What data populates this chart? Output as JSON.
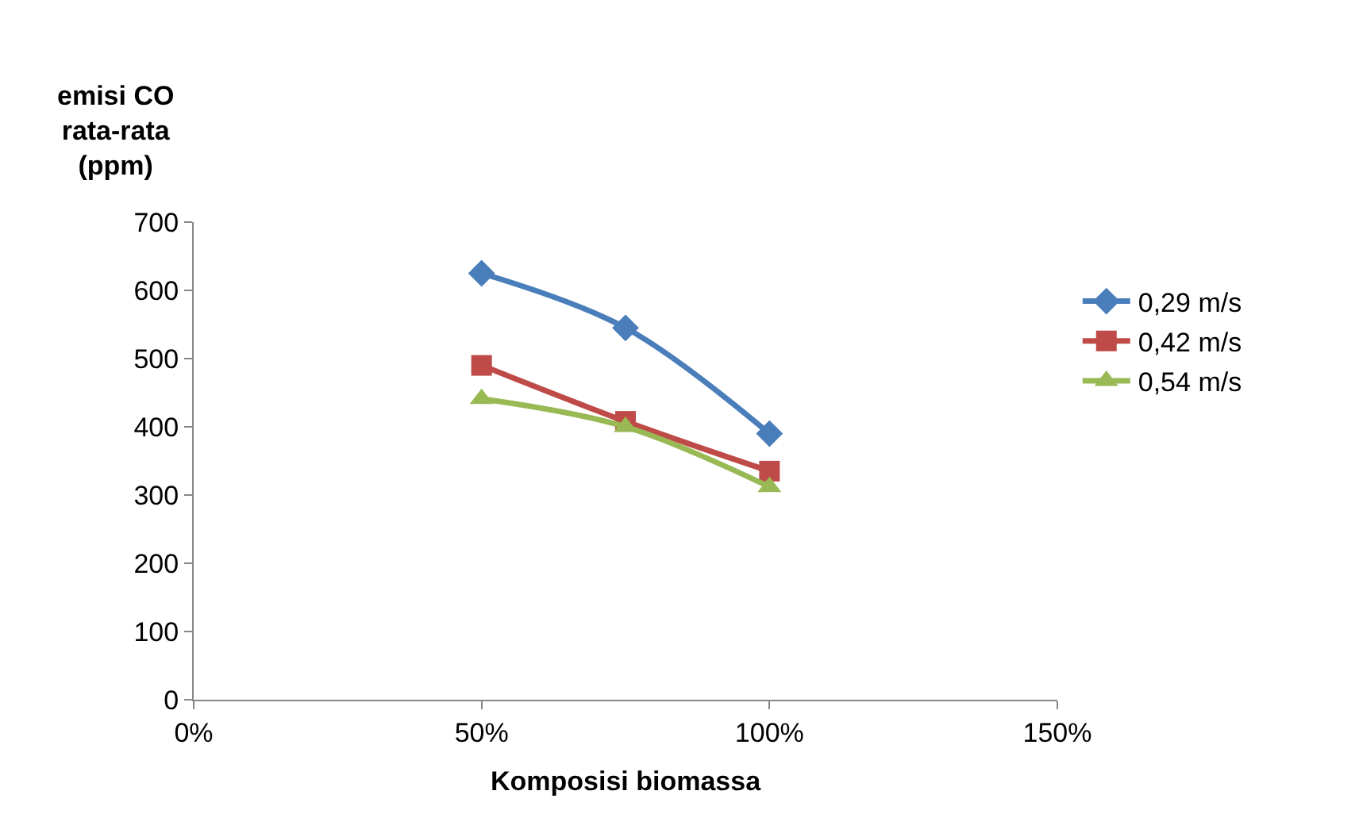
{
  "chart_data": {
    "type": "line",
    "ylabel": "emisi CO\nrata-rata\n(ppm)",
    "xlabel": "Komposisi biomassa",
    "x": [
      50,
      75,
      100
    ],
    "series": [
      {
        "name": "0,29 m/s",
        "color": "#4a7ebb",
        "values": [
          625,
          545,
          390
        ],
        "marker": "diamond"
      },
      {
        "name": "0,42 m/s",
        "color": "#be4b48",
        "values": [
          490,
          408,
          335
        ],
        "marker": "square"
      },
      {
        "name": "0,54 m/s",
        "color": "#98b954",
        "values": [
          441,
          400,
          312
        ],
        "marker": "triangle"
      }
    ],
    "xlim": [
      0,
      150
    ],
    "xticks": [
      {
        "value": 0,
        "label": "0%"
      },
      {
        "value": 50,
        "label": "50%"
      },
      {
        "value": 100,
        "label": "100%"
      },
      {
        "value": 150,
        "label": "150%"
      }
    ],
    "ylim": [
      0,
      700
    ],
    "yticks": [
      0,
      100,
      200,
      300,
      400,
      500,
      600,
      700
    ],
    "legend": "right",
    "line_style": "solid"
  }
}
